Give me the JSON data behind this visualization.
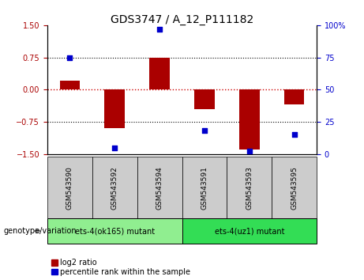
{
  "title": "GDS3747 / A_12_P111182",
  "samples": [
    "GSM543590",
    "GSM543592",
    "GSM543594",
    "GSM543591",
    "GSM543593",
    "GSM543595"
  ],
  "log2_ratio": [
    0.2,
    -0.9,
    0.75,
    -0.45,
    -1.4,
    -0.35
  ],
  "percentile_rank": [
    75,
    5,
    97,
    18,
    2,
    15
  ],
  "ylim_left": [
    -1.5,
    1.5
  ],
  "ylim_right": [
    0,
    100
  ],
  "yticks_left": [
    -1.5,
    -0.75,
    0,
    0.75,
    1.5
  ],
  "yticks_right": [
    0,
    25,
    50,
    75,
    100
  ],
  "ytick_labels_right": [
    "0",
    "25",
    "50",
    "75",
    "100%"
  ],
  "bar_color": "#aa0000",
  "dot_color": "#0000cc",
  "grid_color": "#000000",
  "zero_line_color": "#cc0000",
  "groups": [
    {
      "label": "ets-4(ok165) mutant",
      "n_samples": 3,
      "color": "#90ee90"
    },
    {
      "label": "ets-4(uz1) mutant",
      "n_samples": 3,
      "color": "#33dd55"
    }
  ],
  "group_label": "genotype/variation",
  "legend_bar_label": "log2 ratio",
  "legend_dot_label": "percentile rank within the sample",
  "bar_width": 0.45,
  "sample_box_color": "#cccccc",
  "title_fontsize": 10,
  "tick_fontsize": 7,
  "label_fontsize": 8
}
